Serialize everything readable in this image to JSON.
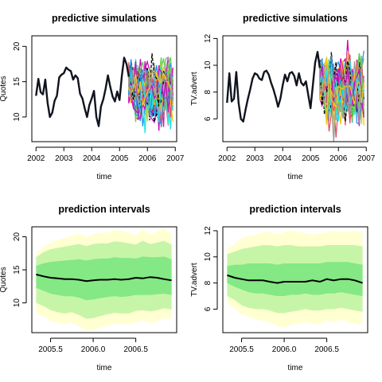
{
  "colors": {
    "history_line": "#10141e",
    "median_line": "#000000",
    "band_95": "#ffffd2",
    "band_80": "#c6f5a8",
    "band_50": "#84e884",
    "sim_palette": [
      "#000000",
      "#df536b",
      "#61d04f",
      "#2297e6",
      "#28e2e5",
      "#cd0bbc",
      "#f5c710",
      "#9e9e9e"
    ]
  },
  "chart_data": [
    {
      "id": "sim_quotes",
      "type": "line",
      "title": "predictive simulations",
      "xlabel": "time",
      "ylabel": "Quotes",
      "xlim": [
        2001.85,
        2007.05
      ],
      "ylim": [
        6.5,
        21.5
      ],
      "xticks": [
        2002,
        2003,
        2004,
        2005,
        2006,
        2007
      ],
      "xtick_labels": [
        "2002",
        "2003",
        "2004",
        "2005",
        "2006",
        "2007"
      ],
      "yticks": [
        10,
        15,
        20
      ],
      "ytick_labels": [
        "10",
        "15",
        "20"
      ],
      "history": {
        "x_start": 2002.0,
        "x_step": 0.0833,
        "values": [
          13.0,
          15.4,
          13.5,
          13.2,
          15.3,
          12.0,
          10.0,
          10.6,
          12.3,
          13.0,
          15.6,
          16.0,
          16.2,
          17.0,
          16.7,
          16.5,
          15.3,
          15.9,
          15.5,
          13.3,
          12.6,
          11.2,
          10.0,
          11.7,
          12.6,
          13.7,
          10.0,
          8.7,
          11.5,
          12.5,
          14.0,
          15.9,
          14.3,
          12.9,
          12.2,
          13.6,
          12.4,
          15.8,
          18.4,
          17.5,
          15.7
        ]
      },
      "simulations": {
        "n_paths": 40,
        "x_start": 2005.33,
        "x_step": 0.0833,
        "n_steps": 20,
        "center": [
          14.5,
          14.0,
          13.8,
          13.7,
          13.6,
          13.5,
          13.4,
          13.5,
          13.6,
          13.6,
          13.6,
          13.7,
          13.6,
          13.6,
          13.9,
          13.8,
          14.0,
          13.9,
          13.7,
          13.5
        ],
        "spread": [
          2.5,
          3.0,
          3.3,
          3.5,
          3.6,
          3.8,
          3.9,
          3.8,
          3.9,
          4.0,
          3.9,
          4.0,
          4.1,
          4.0,
          4.0,
          3.9,
          4.0,
          4.1,
          4.2,
          4.1
        ]
      }
    },
    {
      "id": "sim_tv",
      "type": "line",
      "title": "predictive simulations",
      "xlabel": "time",
      "ylabel": "TV.advert",
      "xlim": [
        2001.85,
        2007.05
      ],
      "ylim": [
        4.3,
        12.2
      ],
      "xticks": [
        2002,
        2003,
        2004,
        2005,
        2006,
        2007
      ],
      "xtick_labels": [
        "2002",
        "2003",
        "2004",
        "2005",
        "2006",
        "2007"
      ],
      "yticks": [
        6,
        8,
        10,
        12
      ],
      "ytick_labels": [
        "6",
        "8",
        "10",
        "12"
      ],
      "history": {
        "x_start": 2002.0,
        "x_step": 0.0833,
        "values": [
          7.2,
          9.4,
          7.3,
          7.5,
          9.5,
          7.2,
          6.0,
          5.8,
          6.7,
          7.5,
          8.2,
          9.0,
          9.4,
          9.3,
          9.0,
          8.9,
          9.5,
          9.6,
          9.3,
          8.7,
          8.2,
          7.6,
          6.9,
          7.5,
          8.5,
          9.3,
          8.8,
          9.4,
          9.5,
          9.2,
          8.5,
          9.4,
          8.7,
          8.5,
          8.8,
          7.8,
          6.8,
          8.5,
          10.2,
          11.0,
          9.8
        ]
      },
      "simulations": {
        "n_paths": 40,
        "x_start": 2005.33,
        "x_step": 0.0833,
        "n_steps": 20,
        "center": [
          8.8,
          8.5,
          8.4,
          8.3,
          8.2,
          8.2,
          8.1,
          8.1,
          8.2,
          8.2,
          8.2,
          8.1,
          8.3,
          8.2,
          8.3,
          8.4,
          8.3,
          8.2,
          8.2,
          8.1
        ],
        "spread": [
          1.4,
          1.7,
          1.9,
          2.0,
          2.1,
          2.1,
          2.2,
          2.2,
          2.2,
          2.3,
          2.2,
          2.3,
          2.3,
          2.3,
          2.3,
          2.2,
          2.3,
          2.4,
          2.3,
          2.3
        ]
      }
    },
    {
      "id": "pi_quotes",
      "type": "area",
      "title": "prediction intervals",
      "xlabel": "time",
      "ylabel": "Quotes",
      "xlim": [
        2005.28,
        2006.98
      ],
      "ylim": [
        5.5,
        21.5
      ],
      "xticks": [
        2005.5,
        2006.0,
        2006.5
      ],
      "xtick_labels": [
        "2005.5",
        "2006.0",
        "2006.5"
      ],
      "yticks": [
        10,
        15,
        20
      ],
      "ytick_labels": [
        "10",
        "15",
        "20"
      ],
      "x": [
        2005.33,
        2005.42,
        2005.5,
        2005.58,
        2005.67,
        2005.75,
        2005.83,
        2005.92,
        2006.0,
        2006.08,
        2006.17,
        2006.25,
        2006.33,
        2006.42,
        2006.5,
        2006.58,
        2006.67,
        2006.75,
        2006.83,
        2006.92
      ],
      "median": [
        14.3,
        14.0,
        13.8,
        13.7,
        13.6,
        13.6,
        13.5,
        13.3,
        13.4,
        13.5,
        13.5,
        13.6,
        13.5,
        13.6,
        13.8,
        13.7,
        13.9,
        13.8,
        13.6,
        13.4
      ],
      "band_95": {
        "lower": [
          8.5,
          8.0,
          7.2,
          7.0,
          6.8,
          7.0,
          6.5,
          5.8,
          5.9,
          6.3,
          6.6,
          6.9,
          6.8,
          6.8,
          7.1,
          7.3,
          7.0,
          7.2,
          7.7,
          7.5
        ],
        "upper": [
          17.4,
          18.5,
          19.1,
          19.5,
          19.8,
          20.2,
          20.5,
          20.0,
          20.4,
          20.6,
          20.6,
          21.0,
          20.9,
          20.6,
          20.2,
          21.1,
          20.3,
          20.8,
          21.2,
          20.4
        ]
      },
      "band_80": {
        "lower": [
          10.0,
          9.5,
          8.9,
          8.6,
          8.4,
          8.6,
          8.2,
          7.6,
          7.7,
          8.0,
          8.3,
          8.5,
          8.4,
          8.4,
          8.8,
          8.9,
          8.7,
          8.9,
          9.2,
          9.0
        ],
        "upper": [
          16.9,
          17.7,
          18.1,
          18.3,
          18.5,
          18.7,
          18.9,
          18.6,
          18.9,
          19.0,
          19.0,
          19.3,
          19.2,
          19.0,
          18.8,
          19.4,
          18.9,
          19.1,
          19.4,
          18.8
        ]
      },
      "band_50": {
        "lower": [
          12.3,
          11.8,
          11.4,
          11.2,
          11.0,
          11.0,
          10.8,
          10.4,
          10.5,
          10.7,
          10.9,
          11.0,
          10.9,
          11.0,
          11.2,
          11.2,
          11.2,
          11.3,
          11.4,
          11.2
        ],
        "upper": [
          15.6,
          16.0,
          16.2,
          16.3,
          16.4,
          16.5,
          16.6,
          16.4,
          16.6,
          16.7,
          16.7,
          16.9,
          16.8,
          16.8,
          16.7,
          17.0,
          16.9,
          16.9,
          17.0,
          16.6
        ]
      }
    },
    {
      "id": "pi_tv",
      "type": "area",
      "title": "prediction intervals",
      "xlabel": "time",
      "ylabel": "TV.advert",
      "xlim": [
        2005.28,
        2006.98
      ],
      "ylim": [
        4.2,
        12.3
      ],
      "xticks": [
        2005.5,
        2006.0,
        2006.5
      ],
      "xtick_labels": [
        "2005.5",
        "2006.0",
        "2006.5"
      ],
      "yticks": [
        6,
        8,
        10,
        12
      ],
      "ytick_labels": [
        "6",
        "8",
        "10",
        "12"
      ],
      "x": [
        2005.33,
        2005.42,
        2005.5,
        2005.58,
        2005.67,
        2005.75,
        2005.83,
        2005.92,
        2006.0,
        2006.08,
        2006.17,
        2006.25,
        2006.33,
        2006.42,
        2006.5,
        2006.58,
        2006.67,
        2006.75,
        2006.83,
        2006.92
      ],
      "median": [
        8.6,
        8.4,
        8.3,
        8.2,
        8.2,
        8.2,
        8.1,
        8.0,
        8.1,
        8.1,
        8.1,
        8.1,
        8.2,
        8.1,
        8.3,
        8.2,
        8.3,
        8.3,
        8.2,
        8.0
      ],
      "band_95": {
        "lower": [
          6.5,
          6.0,
          5.6,
          5.4,
          5.2,
          5.1,
          5.0,
          4.7,
          4.6,
          4.8,
          4.9,
          5.0,
          4.9,
          4.9,
          5.1,
          5.0,
          5.2,
          5.0,
          4.9,
          4.8
        ],
        "upper": [
          10.6,
          11.0,
          11.4,
          11.6,
          11.7,
          11.9,
          11.9,
          11.7,
          11.9,
          12.0,
          11.9,
          11.8,
          11.7,
          11.8,
          11.9,
          12.0,
          11.9,
          11.9,
          12.0,
          11.8
        ]
      },
      "band_80": {
        "lower": [
          7.0,
          6.7,
          6.3,
          6.1,
          6.0,
          6.0,
          5.9,
          5.7,
          5.7,
          5.8,
          5.9,
          6.0,
          5.9,
          5.9,
          6.0,
          6.0,
          6.1,
          6.0,
          5.9,
          5.8
        ],
        "upper": [
          10.2,
          10.4,
          10.6,
          10.7,
          10.8,
          10.9,
          10.9,
          10.8,
          10.9,
          10.9,
          10.8,
          10.8,
          10.8,
          10.8,
          10.9,
          10.9,
          10.9,
          10.9,
          10.9,
          10.8
        ],
        "note": ""
      },
      "band_50": {
        "lower": [
          8.0,
          7.7,
          7.5,
          7.3,
          7.2,
          7.2,
          7.1,
          7.0,
          7.0,
          7.1,
          7.1,
          7.2,
          7.1,
          7.1,
          7.2,
          7.2,
          7.3,
          7.2,
          7.1,
          7.0
        ],
        "upper": [
          9.3,
          9.4,
          9.4,
          9.5,
          9.5,
          9.5,
          9.5,
          9.4,
          9.5,
          9.5,
          9.5,
          9.5,
          9.5,
          9.5,
          9.6,
          9.6,
          9.6,
          9.6,
          9.5,
          9.4
        ]
      }
    }
  ]
}
